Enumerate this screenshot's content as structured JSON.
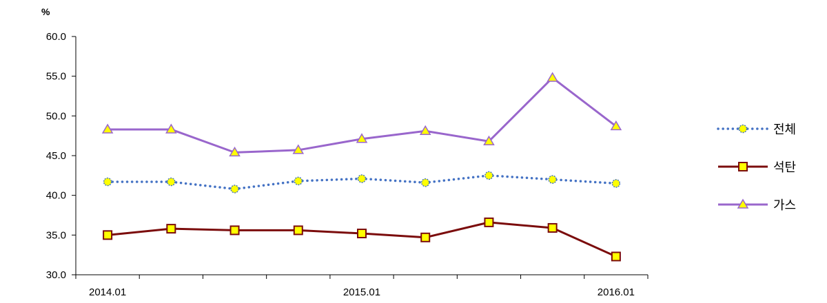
{
  "chart_data": {
    "type": "line",
    "unit": "%",
    "ylim": [
      30.0,
      60.0
    ],
    "yticks": [
      "30.0",
      "35.0",
      "40.0",
      "45.0",
      "50.0",
      "55.0",
      "60.0"
    ],
    "x": [
      "2014.01",
      "2014.04",
      "2014.07",
      "2014.10",
      "2015.01",
      "2015.04",
      "2015.07",
      "2015.10",
      "2016.01"
    ],
    "xtick_labels": [
      "2014.01",
      "",
      "",
      "",
      "2015.01",
      "",
      "",
      "",
      "2016.01"
    ],
    "grid": false,
    "legend_position": "right",
    "series": [
      {
        "name": "전체",
        "color": "#4472C4",
        "marker": "circle",
        "marker_fill": "#FFFF00",
        "line_style": "dotted",
        "values": [
          41.7,
          41.7,
          40.8,
          41.8,
          42.1,
          41.6,
          42.5,
          42.0,
          41.5
        ]
      },
      {
        "name": "석탄",
        "color": "#7B0C0C",
        "marker": "square",
        "marker_fill": "#FFFF00",
        "line_style": "solid",
        "values": [
          35.0,
          35.8,
          35.6,
          35.6,
          35.2,
          34.7,
          36.6,
          35.9,
          32.3
        ]
      },
      {
        "name": "가스",
        "color": "#9966CC",
        "marker": "triangle",
        "marker_fill": "#FFFF00",
        "line_style": "solid",
        "values": [
          48.3,
          48.3,
          45.4,
          45.7,
          47.1,
          48.1,
          46.8,
          54.8,
          48.7
        ]
      }
    ]
  }
}
